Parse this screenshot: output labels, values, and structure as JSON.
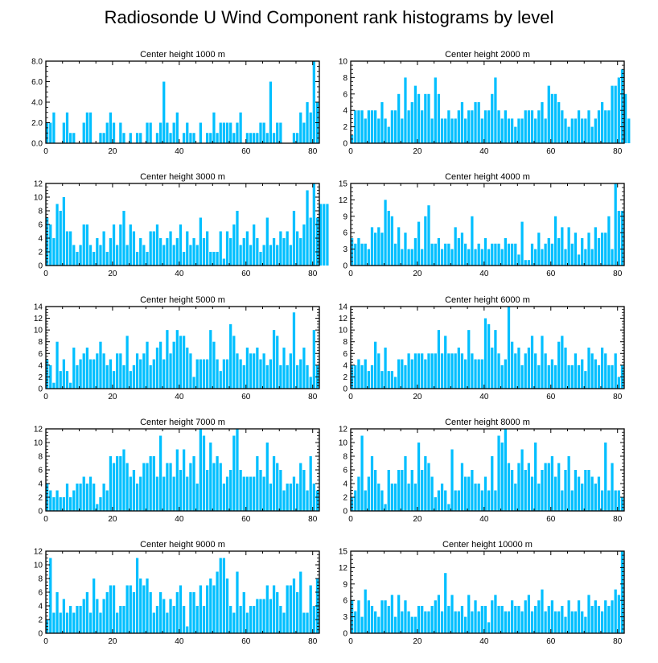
{
  "title": "Radiosonde U Wind Component rank histograms by level",
  "bar_color": "#00bfff",
  "chart_data": [
    {
      "type": "bar",
      "title": "Center height 1000 m",
      "xlim": [
        0,
        82
      ],
      "xticks": [
        0,
        20,
        40,
        60,
        80
      ],
      "ylim": [
        0,
        8
      ],
      "yticks": [
        0,
        2,
        4,
        6,
        8
      ],
      "ytick_labels": [
        "0.0",
        "2.0",
        "4.0",
        "6.0",
        "8.0"
      ],
      "values": [
        2,
        2,
        3,
        0,
        0,
        2,
        3,
        1,
        1,
        0,
        0,
        2,
        3,
        3,
        0,
        0,
        1,
        1,
        2,
        3,
        2,
        0,
        2,
        1,
        0,
        1,
        0,
        1,
        1,
        0,
        2,
        2,
        0,
        1,
        2,
        6,
        2,
        1,
        2,
        3,
        0,
        1,
        2,
        1,
        1,
        0,
        2,
        0,
        1,
        1,
        3,
        1,
        2,
        2,
        2,
        2,
        1,
        2,
        3,
        0,
        1,
        1,
        1,
        1,
        2,
        2,
        1,
        6,
        1,
        2,
        2,
        0,
        0,
        0,
        1,
        1,
        3,
        2,
        4,
        3,
        8,
        4
      ]
    },
    {
      "type": "bar",
      "title": "Center height 2000 m",
      "xlim": [
        0,
        82
      ],
      "xticks": [
        0,
        20,
        40,
        60,
        80
      ],
      "ylim": [
        0,
        10
      ],
      "yticks": [
        0,
        2,
        4,
        6,
        8,
        10
      ],
      "ytick_labels": [
        "0",
        "2",
        "4",
        "6",
        "8",
        "10"
      ],
      "values": [
        1,
        4,
        4,
        4,
        3,
        4,
        4,
        4,
        3,
        5,
        3,
        2,
        4,
        4,
        6,
        3,
        8,
        4,
        5,
        7,
        6,
        4,
        6,
        6,
        3,
        8,
        6,
        3,
        3,
        4,
        3,
        3,
        4,
        5,
        3,
        4,
        4,
        5,
        5,
        3,
        4,
        4,
        6,
        8,
        4,
        3,
        4,
        3,
        3,
        2,
        3,
        3,
        4,
        4,
        4,
        3,
        4,
        5,
        3,
        7,
        6,
        6,
        5,
        4,
        3,
        2,
        3,
        3,
        4,
        3,
        3,
        4,
        2,
        3,
        4,
        5,
        4,
        4,
        7,
        7,
        8,
        9,
        6,
        3
      ]
    },
    {
      "type": "bar",
      "title": "Center height 3000 m",
      "xlim": [
        0,
        82
      ],
      "xticks": [
        0,
        20,
        40,
        60,
        80
      ],
      "ylim": [
        0,
        12
      ],
      "yticks": [
        0,
        2,
        4,
        6,
        8,
        10,
        12
      ],
      "ytick_labels": [
        "0",
        "2",
        "4",
        "6",
        "8",
        "10",
        "12"
      ],
      "values": [
        7,
        6,
        4,
        9,
        8,
        10,
        5,
        5,
        3,
        2,
        3,
        6,
        6,
        3,
        2,
        4,
        3,
        5,
        2,
        4,
        6,
        3,
        6,
        8,
        3,
        6,
        5,
        2,
        4,
        3,
        2,
        5,
        5,
        6,
        4,
        3,
        4,
        5,
        3,
        4,
        6,
        2,
        5,
        3,
        4,
        3,
        7,
        4,
        5,
        2,
        2,
        2,
        5,
        1,
        5,
        4,
        6,
        8,
        3,
        4,
        5,
        3,
        6,
        4,
        2,
        3,
        7,
        3,
        4,
        3,
        5,
        4,
        5,
        3,
        8,
        5,
        4,
        6,
        11,
        7,
        12,
        7,
        9,
        9,
        9
      ]
    },
    {
      "type": "bar",
      "title": "Center height 4000 m",
      "xlim": [
        0,
        82
      ],
      "xticks": [
        0,
        20,
        40,
        60,
        80
      ],
      "ylim": [
        0,
        15
      ],
      "yticks": [
        0,
        3,
        6,
        9,
        12,
        15
      ],
      "ytick_labels": [
        "0",
        "3",
        "6",
        "9",
        "12",
        "15"
      ],
      "values": [
        5,
        4,
        5,
        4,
        4,
        3,
        7,
        6,
        7,
        6,
        12,
        10,
        9,
        4,
        7,
        3,
        6,
        3,
        3,
        5,
        8,
        3,
        9,
        11,
        4,
        4,
        5,
        3,
        4,
        4,
        3,
        7,
        5,
        6,
        4,
        3,
        9,
        3,
        4,
        3,
        5,
        3,
        4,
        4,
        4,
        3,
        5,
        4,
        4,
        4,
        2,
        8,
        1,
        1,
        4,
        3,
        6,
        3,
        4,
        5,
        4,
        9,
        5,
        7,
        3,
        7,
        4,
        6,
        2,
        5,
        3,
        6,
        3,
        7,
        5,
        6,
        6,
        9,
        3,
        15,
        10,
        10
      ]
    },
    {
      "type": "bar",
      "title": "Center height 5000 m",
      "xlim": [
        0,
        82
      ],
      "xticks": [
        0,
        20,
        40,
        60,
        80
      ],
      "ylim": [
        0,
        14
      ],
      "yticks": [
        0,
        2,
        4,
        6,
        8,
        10,
        12,
        14
      ],
      "ytick_labels": [
        "0",
        "2",
        "4",
        "6",
        "8",
        "10",
        "12",
        "14"
      ],
      "values": [
        5,
        4,
        1,
        8,
        3,
        5,
        3,
        1,
        7,
        4,
        5,
        6,
        7,
        5,
        5,
        6,
        8,
        6,
        4,
        5,
        3,
        6,
        6,
        4,
        9,
        3,
        4,
        6,
        5,
        6,
        8,
        4,
        5,
        7,
        8,
        5,
        10,
        6,
        8,
        10,
        9,
        9,
        7,
        6,
        2,
        5,
        5,
        5,
        5,
        10,
        8,
        5,
        3,
        5,
        5,
        11,
        9,
        6,
        5,
        4,
        7,
        6,
        6,
        7,
        5,
        6,
        4,
        5,
        10,
        9,
        4,
        7,
        4,
        6,
        13,
        4,
        5,
        7,
        4,
        2,
        10,
        4
      ]
    },
    {
      "type": "bar",
      "title": "Center height 6000 m",
      "xlim": [
        0,
        82
      ],
      "xticks": [
        0,
        20,
        40,
        60,
        80
      ],
      "ylim": [
        0,
        14
      ],
      "yticks": [
        0,
        2,
        4,
        6,
        8,
        10,
        12,
        14
      ],
      "ytick_labels": [
        "0",
        "2",
        "4",
        "6",
        "8",
        "10",
        "12",
        "14"
      ],
      "values": [
        4,
        4,
        5,
        4,
        5,
        3,
        4,
        8,
        6,
        3,
        7,
        3,
        3,
        2,
        5,
        5,
        4,
        6,
        5,
        6,
        6,
        6,
        5,
        6,
        6,
        6,
        10,
        6,
        9,
        6,
        6,
        6,
        7,
        6,
        5,
        10,
        6,
        5,
        5,
        5,
        12,
        11,
        7,
        10,
        6,
        4,
        5,
        14,
        8,
        6,
        7,
        4,
        6,
        7,
        9,
        6,
        4,
        9,
        6,
        4,
        5,
        4,
        8,
        9,
        7,
        4,
        4,
        6,
        4,
        5,
        3,
        7,
        6,
        5,
        4,
        7,
        6,
        4,
        4,
        6,
        2,
        4
      ]
    },
    {
      "type": "bar",
      "title": "Center height 7000 m",
      "xlim": [
        0,
        82
      ],
      "xticks": [
        0,
        20,
        40,
        60,
        80
      ],
      "ylim": [
        0,
        12
      ],
      "yticks": [
        0,
        2,
        4,
        6,
        8,
        10,
        12
      ],
      "ytick_labels": [
        "0",
        "2",
        "4",
        "6",
        "8",
        "10",
        "12"
      ],
      "values": [
        4,
        3,
        2,
        3,
        2,
        2,
        4,
        2,
        3,
        4,
        4,
        5,
        4,
        5,
        4,
        1,
        2,
        4,
        3,
        8,
        7,
        8,
        8,
        9,
        7,
        5,
        6,
        4,
        5,
        7,
        7,
        8,
        8,
        5,
        11,
        5,
        7,
        7,
        5,
        9,
        6,
        9,
        5,
        7,
        8,
        4,
        12,
        11,
        6,
        10,
        7,
        8,
        7,
        4,
        5,
        6,
        11,
        12,
        6,
        5,
        5,
        5,
        5,
        8,
        6,
        5,
        10,
        4,
        8,
        7,
        6,
        3,
        4,
        4,
        5,
        4,
        7,
        6,
        3,
        8,
        4,
        3
      ]
    },
    {
      "type": "bar",
      "title": "Center height 8000 m",
      "xlim": [
        0,
        82
      ],
      "xticks": [
        0,
        20,
        40,
        60,
        80
      ],
      "ylim": [
        0,
        12
      ],
      "yticks": [
        0,
        2,
        4,
        6,
        8,
        10,
        12
      ],
      "ytick_labels": [
        "0",
        "2",
        "4",
        "6",
        "8",
        "10",
        "12"
      ],
      "values": [
        2,
        3,
        5,
        11,
        3,
        5,
        8,
        6,
        4,
        3,
        1,
        6,
        4,
        4,
        6,
        6,
        8,
        4,
        6,
        4,
        10,
        6,
        8,
        7,
        5,
        2,
        3,
        4,
        3,
        1,
        9,
        3,
        3,
        7,
        5,
        5,
        6,
        4,
        4,
        3,
        5,
        3,
        8,
        3,
        11,
        10,
        12,
        7,
        6,
        4,
        7,
        9,
        6,
        7,
        5,
        10,
        4,
        6,
        7,
        7,
        8,
        5,
        7,
        3,
        6,
        8,
        3,
        6,
        5,
        4,
        6,
        6,
        5,
        4,
        5,
        3,
        10,
        3,
        7,
        3,
        3,
        2
      ]
    },
    {
      "type": "bar",
      "title": "Center height 9000 m",
      "xlim": [
        0,
        82
      ],
      "xticks": [
        0,
        20,
        40,
        60,
        80
      ],
      "ylim": [
        0,
        12
      ],
      "yticks": [
        0,
        2,
        4,
        6,
        8,
        10,
        12
      ],
      "ytick_labels": [
        "0",
        "2",
        "4",
        "6",
        "8",
        "10",
        "12"
      ],
      "values": [
        2,
        11,
        3,
        6,
        3,
        5,
        3,
        4,
        3,
        4,
        4,
        5,
        6,
        3,
        8,
        5,
        3,
        5,
        6,
        7,
        7,
        3,
        4,
        4,
        7,
        7,
        6,
        11,
        8,
        7,
        8,
        6,
        3,
        4,
        6,
        5,
        3,
        5,
        4,
        6,
        7,
        4,
        1,
        6,
        6,
        4,
        7,
        4,
        7,
        8,
        7,
        9,
        11,
        11,
        8,
        4,
        3,
        9,
        4,
        6,
        3,
        4,
        4,
        5,
        5,
        5,
        7,
        5,
        7,
        6,
        4,
        3,
        7,
        7,
        8,
        6,
        9,
        3,
        3,
        7,
        4,
        8
      ]
    },
    {
      "type": "bar",
      "title": "Center height 10000 m",
      "xlim": [
        0,
        82
      ],
      "xticks": [
        0,
        20,
        40,
        60,
        80
      ],
      "ylim": [
        0,
        15
      ],
      "yticks": [
        0,
        3,
        6,
        9,
        12,
        15
      ],
      "ytick_labels": [
        "0",
        "3",
        "6",
        "9",
        "12",
        "15"
      ],
      "values": [
        6,
        4,
        6,
        3,
        8,
        6,
        5,
        4,
        3,
        6,
        6,
        5,
        7,
        3,
        7,
        4,
        6,
        4,
        3,
        3,
        5,
        5,
        4,
        4,
        5,
        6,
        7,
        4,
        11,
        5,
        7,
        4,
        4,
        5,
        3,
        7,
        4,
        6,
        4,
        5,
        5,
        2,
        6,
        7,
        5,
        5,
        4,
        4,
        6,
        5,
        5,
        4,
        6,
        7,
        4,
        5,
        6,
        8,
        4,
        5,
        6,
        4,
        4,
        5,
        3,
        6,
        4,
        4,
        6,
        4,
        3,
        7,
        5,
        6,
        5,
        4,
        6,
        5,
        6,
        8,
        7,
        15
      ]
    }
  ]
}
